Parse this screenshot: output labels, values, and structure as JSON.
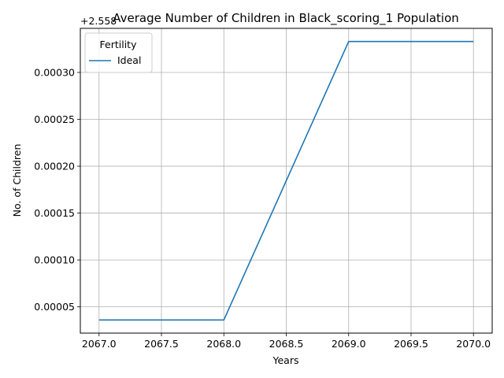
{
  "chart_data": {
    "type": "line",
    "title": "Average Number of Children in Black_scoring_1 Population",
    "xlabel": "Years",
    "ylabel": "No. of Children",
    "offset_label": "+2.558",
    "x": [
      2067,
      2068,
      2069,
      2070
    ],
    "series": [
      {
        "name": "Ideal",
        "color": "#1f77b4",
        "values": [
          3.6e-05,
          3.6e-05,
          0.000333,
          0.000333
        ]
      }
    ],
    "xlim": [
      2066.85,
      2070.15
    ],
    "ylim": [
      2.2e-05,
      0.000347
    ],
    "xticks": [
      2067.0,
      2067.5,
      2068.0,
      2068.5,
      2069.0,
      2069.5,
      2070.0
    ],
    "xtick_labels": [
      "2067.0",
      "2067.5",
      "2068.0",
      "2068.5",
      "2069.0",
      "2069.5",
      "2070.0"
    ],
    "yticks": [
      5e-05,
      0.0001,
      0.00015,
      0.0002,
      0.00025,
      0.0003
    ],
    "ytick_labels": [
      "0.00005",
      "0.00010",
      "0.00015",
      "0.00020",
      "0.00025",
      "0.00030"
    ],
    "legend": {
      "title": "Fertility",
      "placement": "top-left"
    },
    "grid": true
  }
}
